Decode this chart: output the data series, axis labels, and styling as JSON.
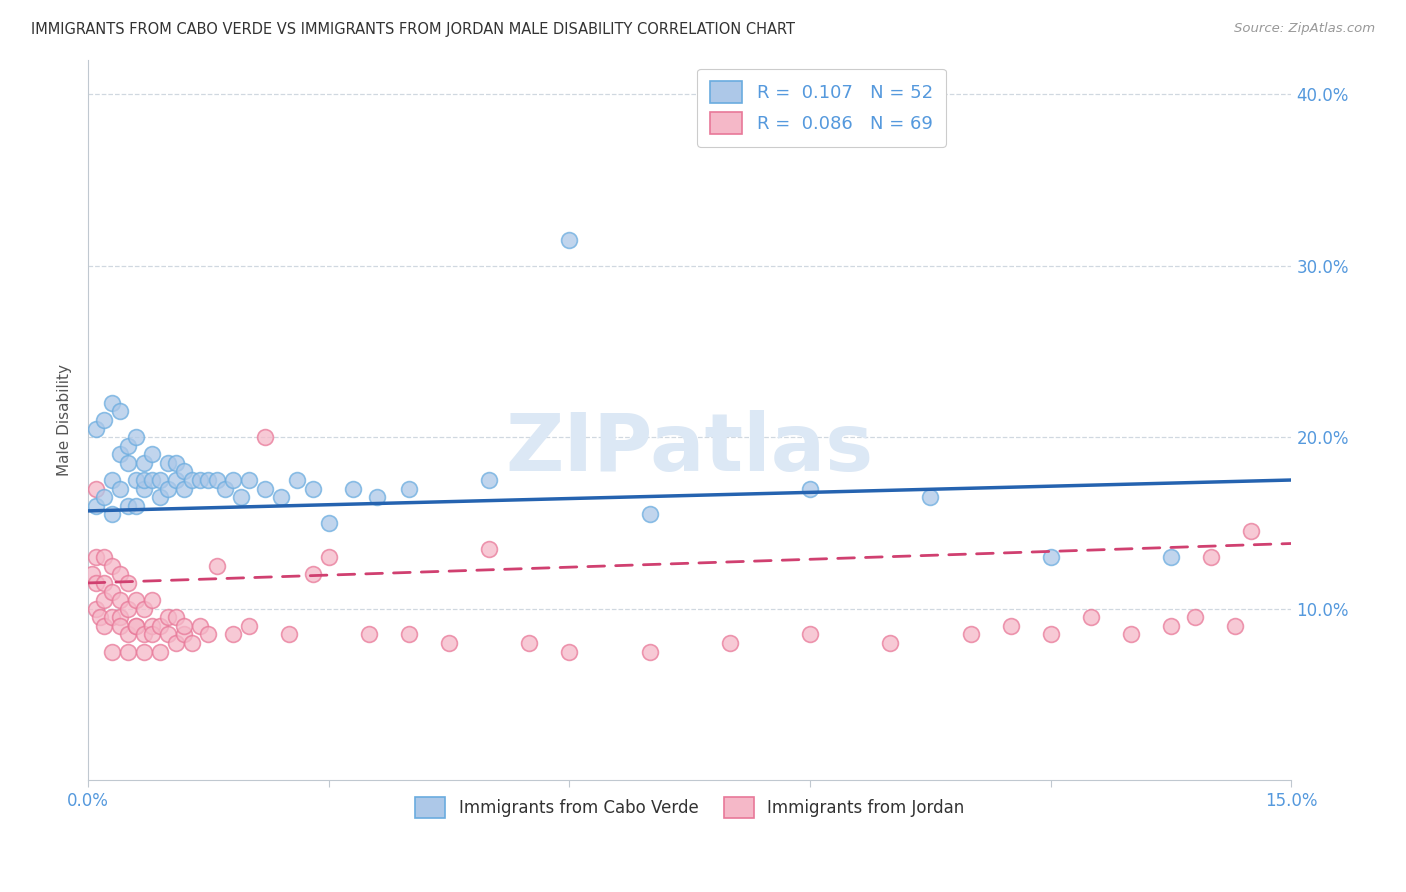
{
  "title": "IMMIGRANTS FROM CABO VERDE VS IMMIGRANTS FROM JORDAN MALE DISABILITY CORRELATION CHART",
  "source": "Source: ZipAtlas.com",
  "legend_label_cv": "Immigrants from Cabo Verde",
  "legend_label_j": "Immigrants from Jordan",
  "ylabel_label": "Male Disability",
  "x_min": 0.0,
  "x_max": 0.15,
  "y_min": 0.0,
  "y_max": 0.42,
  "cabo_verde_R": 0.107,
  "cabo_verde_N": 52,
  "jordan_R": 0.086,
  "jordan_N": 69,
  "cabo_verde_color": "#adc8e8",
  "cabo_verde_edge_color": "#6aacdf",
  "cabo_verde_line_color": "#2563b0",
  "jordan_color": "#f5b8c8",
  "jordan_edge_color": "#e87898",
  "jordan_line_color": "#d04070",
  "watermark_color": "#dce8f5",
  "grid_color": "#d0d8e0",
  "spine_color": "#c0c8d0",
  "tick_label_color": "#5599dd",
  "title_color": "#333333",
  "ylabel_color": "#555555",
  "cabo_verde_x": [
    0.001,
    0.001,
    0.002,
    0.002,
    0.003,
    0.003,
    0.003,
    0.004,
    0.004,
    0.004,
    0.005,
    0.005,
    0.005,
    0.006,
    0.006,
    0.006,
    0.007,
    0.007,
    0.007,
    0.008,
    0.008,
    0.009,
    0.009,
    0.01,
    0.01,
    0.011,
    0.011,
    0.012,
    0.012,
    0.013,
    0.014,
    0.015,
    0.016,
    0.017,
    0.018,
    0.019,
    0.02,
    0.022,
    0.024,
    0.026,
    0.028,
    0.03,
    0.033,
    0.036,
    0.04,
    0.05,
    0.06,
    0.07,
    0.09,
    0.105,
    0.12,
    0.135
  ],
  "cabo_verde_y": [
    0.16,
    0.205,
    0.165,
    0.21,
    0.155,
    0.175,
    0.22,
    0.17,
    0.19,
    0.215,
    0.16,
    0.185,
    0.195,
    0.16,
    0.175,
    0.2,
    0.17,
    0.185,
    0.175,
    0.175,
    0.19,
    0.165,
    0.175,
    0.17,
    0.185,
    0.175,
    0.185,
    0.17,
    0.18,
    0.175,
    0.175,
    0.175,
    0.175,
    0.17,
    0.175,
    0.165,
    0.175,
    0.17,
    0.165,
    0.175,
    0.17,
    0.15,
    0.17,
    0.165,
    0.17,
    0.175,
    0.315,
    0.155,
    0.17,
    0.165,
    0.13,
    0.13
  ],
  "jordan_x": [
    0.0005,
    0.001,
    0.001,
    0.001,
    0.001,
    0.0015,
    0.002,
    0.002,
    0.002,
    0.002,
    0.003,
    0.003,
    0.003,
    0.003,
    0.004,
    0.004,
    0.004,
    0.004,
    0.005,
    0.005,
    0.005,
    0.005,
    0.006,
    0.006,
    0.006,
    0.007,
    0.007,
    0.007,
    0.008,
    0.008,
    0.008,
    0.009,
    0.009,
    0.01,
    0.01,
    0.011,
    0.011,
    0.012,
    0.012,
    0.013,
    0.014,
    0.015,
    0.016,
    0.018,
    0.02,
    0.022,
    0.025,
    0.028,
    0.03,
    0.035,
    0.04,
    0.045,
    0.05,
    0.055,
    0.06,
    0.07,
    0.08,
    0.09,
    0.1,
    0.11,
    0.115,
    0.12,
    0.125,
    0.13,
    0.135,
    0.138,
    0.14,
    0.143,
    0.145
  ],
  "jordan_y": [
    0.12,
    0.1,
    0.115,
    0.13,
    0.17,
    0.095,
    0.105,
    0.115,
    0.13,
    0.09,
    0.095,
    0.11,
    0.125,
    0.075,
    0.095,
    0.105,
    0.12,
    0.09,
    0.085,
    0.1,
    0.115,
    0.075,
    0.09,
    0.105,
    0.09,
    0.085,
    0.1,
    0.075,
    0.09,
    0.105,
    0.085,
    0.09,
    0.075,
    0.085,
    0.095,
    0.08,
    0.095,
    0.085,
    0.09,
    0.08,
    0.09,
    0.085,
    0.125,
    0.085,
    0.09,
    0.2,
    0.085,
    0.12,
    0.13,
    0.085,
    0.085,
    0.08,
    0.135,
    0.08,
    0.075,
    0.075,
    0.08,
    0.085,
    0.08,
    0.085,
    0.09,
    0.085,
    0.095,
    0.085,
    0.09,
    0.095,
    0.13,
    0.09,
    0.145
  ]
}
